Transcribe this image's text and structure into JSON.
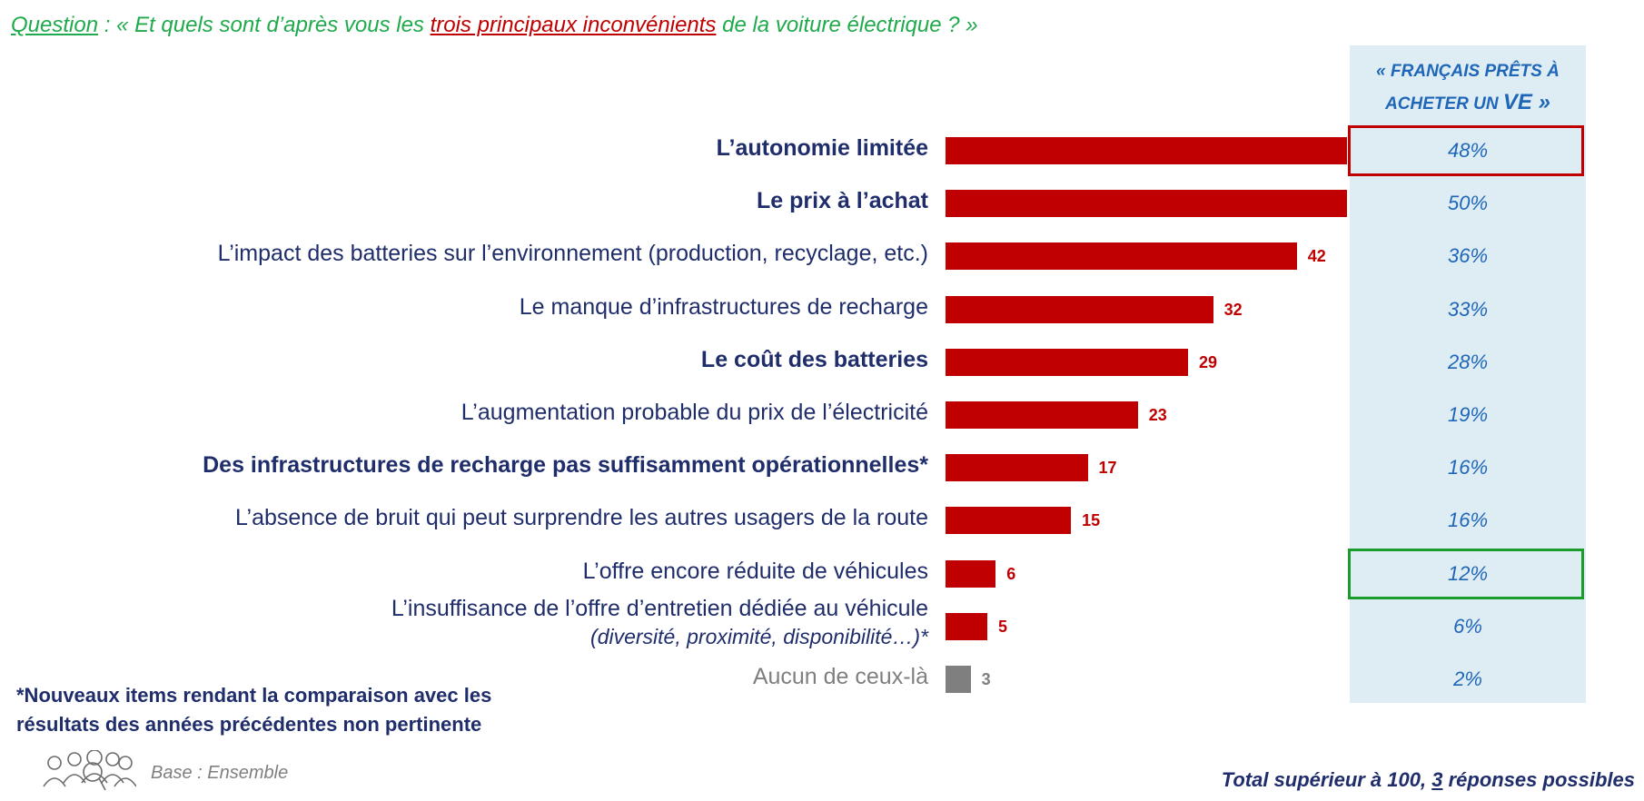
{
  "question": {
    "prefix": "Question",
    "sep": " : « Et quels sont d’après vous les ",
    "emph": "trois principaux inconvénients",
    "suffix": " de la voiture électrique  ? »"
  },
  "column_header": {
    "line1": "« FRANÇAIS PRÊTS À",
    "line2a": "ACHETER UN ",
    "line2b": "VE",
    "line2c": " »"
  },
  "colors": {
    "bar": "#c00000",
    "bar_none": "#7f7f7f",
    "highlight_red": "#c00000",
    "highlight_green": "#1a9c2a"
  },
  "chart_data": {
    "type": "bar",
    "orientation": "horizontal",
    "categories": [
      "L’autonomie limitée",
      "Le prix à l’achat",
      "L’impact des batteries sur l’environnement (production, recyclage, etc.)",
      "Le manque d’infrastructures de recharge",
      "Le coût des batteries",
      "L’augmentation probable du prix de l’électricité",
      "Des infrastructures de recharge pas suffisamment opérationnelles*",
      "L’absence de bruit qui peut surprendre les autres usagers de la route",
      "L’offre encore réduite de véhicules",
      "L’insuffisance de l’offre d’entretien dédiée au véhicule",
      "Aucun de ceux-là"
    ],
    "category_sub": [
      "",
      "",
      "",
      "",
      "",
      "",
      "",
      "",
      "",
      "(diversité,  proximité,  disponibilité…)*",
      ""
    ],
    "category_bold": [
      true,
      true,
      false,
      false,
      true,
      false,
      true,
      false,
      false,
      false,
      false
    ],
    "values": [
      null,
      null,
      42,
      32,
      29,
      23,
      17,
      15,
      6,
      5,
      3
    ],
    "value_labels": [
      "",
      "",
      "42",
      "32",
      "29",
      "23",
      "17",
      "15",
      "6",
      "5",
      "3"
    ],
    "xlim": [
      0,
      48
    ],
    "bars_clipped_at_max": [
      true,
      true,
      false,
      false,
      false,
      false,
      false,
      false,
      false,
      false,
      false
    ],
    "series_grey_last": true,
    "secondary_column": {
      "values": [
        "48%",
        "50%",
        "36%",
        "33%",
        "28%",
        "19%",
        "16%",
        "16%",
        "12%",
        "6%",
        "2%"
      ],
      "highlight_red_index": 0,
      "highlight_green_index": 8
    }
  },
  "footnote": {
    "line1": "*Nouveaux items rendant la comparaison avec les",
    "line2": "résultats des années précédentes non pertinente"
  },
  "base": "Base : Ensemble",
  "total": {
    "a": "Total supérieur à 100, ",
    "b": "3",
    "c": " réponses possibles"
  }
}
